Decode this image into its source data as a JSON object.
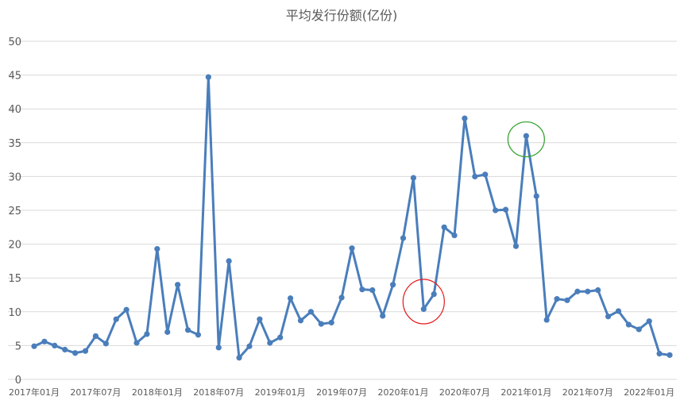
{
  "chart_data": {
    "type": "line",
    "title": "平均发行份额(亿份)",
    "xlabel": "",
    "ylabel": "",
    "ylim": [
      0,
      50
    ],
    "yticks": [
      0,
      5,
      10,
      15,
      20,
      25,
      30,
      35,
      40,
      45,
      50
    ],
    "x_tick_labels": [
      "2017年01月",
      "2017年07月",
      "2018年01月",
      "2018年07月",
      "2019年01月",
      "2019年07月",
      "2020年01月",
      "2020年07月",
      "2021年01月",
      "2021年07月",
      "2022年01月"
    ],
    "categories": [
      "2017年01月",
      "2017年02月",
      "2017年03月",
      "2017年04月",
      "2017年05月",
      "2017年06月",
      "2017年07月",
      "2017年08月",
      "2017年09月",
      "2017年10月",
      "2017年11月",
      "2017年12月",
      "2018年01月",
      "2018年02月",
      "2018年03月",
      "2018年04月",
      "2018年05月",
      "2018年06月",
      "2018年07月",
      "2018年08月",
      "2018年09月",
      "2018年10月",
      "2018年11月",
      "2018年12月",
      "2019年01月",
      "2019年02月",
      "2019年03月",
      "2019年04月",
      "2019年05月",
      "2019年06月",
      "2019年07月",
      "2019年08月",
      "2019年09月",
      "2019年10月",
      "2019年11月",
      "2019年12月",
      "2020年01月",
      "2020年02月",
      "2020年03月",
      "2020年04月",
      "2020年05月",
      "2020年06月",
      "2020年07月",
      "2020年08月",
      "2020年09月",
      "2020年10月",
      "2020年11月",
      "2020年12月",
      "2021年01月",
      "2021年02月",
      "2021年03月",
      "2021年04月",
      "2021年05月",
      "2021年06月",
      "2021年07月",
      "2021年08月",
      "2021年09月",
      "2021年10月",
      "2021年11月",
      "2021年12月",
      "2022年01月",
      "2022年02月",
      "2022年03月"
    ],
    "series": [
      {
        "name": "",
        "color": "#4a7ebb",
        "values": [
          4.9,
          5.6,
          5.0,
          4.4,
          3.9,
          4.2,
          6.4,
          5.3,
          8.9,
          10.3,
          5.4,
          6.7,
          19.3,
          7.0,
          14.0,
          7.3,
          6.6,
          44.7,
          4.7,
          17.5,
          3.2,
          4.9,
          8.9,
          5.4,
          6.2,
          12.0,
          8.7,
          10.0,
          8.2,
          8.4,
          12.1,
          19.4,
          13.3,
          13.2,
          9.4,
          14.0,
          20.9,
          29.8,
          10.4,
          12.6,
          22.5,
          21.3,
          38.6,
          30.0,
          30.3,
          25.0,
          25.1,
          19.7,
          36.0,
          27.1,
          8.8,
          11.9,
          11.7,
          13.0,
          13.0,
          13.2,
          9.3,
          10.1,
          8.1,
          7.4,
          8.6,
          3.8,
          3.6
        ]
      }
    ],
    "annotations": [
      {
        "type": "circle",
        "color": "#e31a1c",
        "at_category": "2020年03月",
        "value": 11.5
      },
      {
        "type": "circle",
        "color": "#33a02c",
        "at_category": "2021年01月",
        "value": 35.5
      }
    ],
    "grid": true,
    "legend": "none",
    "gridline_color": "#d9d9d9"
  }
}
